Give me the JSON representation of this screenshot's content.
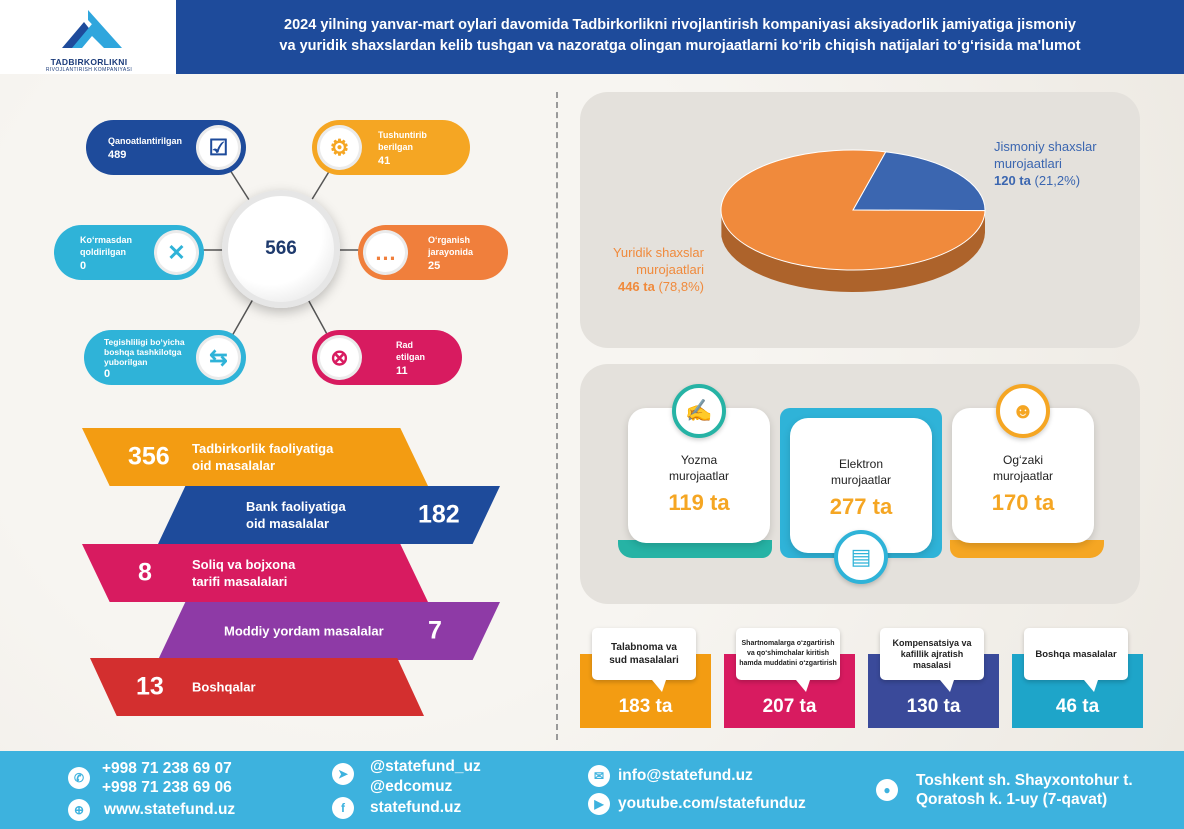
{
  "header": {
    "logo_title": "TADBIRKORLIKNI",
    "logo_subtitle": "RIVOJLANTIRISH KOMPANIYASI",
    "title_line1": "2024 yilning  yanvar-mart  oylari davomida Tadbirkorlikni rivojlantirish kompaniyasi aksiyadorlik jamiyatiga jismoniy",
    "title_line2": "va yuridik shaxslardan kelib tushgan va nazoratga olingan murojaatlarni ko‘rib chiqish natijalari to‘g‘risida ma'lumot"
  },
  "hub": {
    "total": "566",
    "items": [
      {
        "label": "Qanoatlantirilgan",
        "value": "489",
        "color": "#1e4b9b",
        "icon": "checkbox-icon"
      },
      {
        "label_l1": "Tushuntirib",
        "label_l2": "berilgan",
        "value": "41",
        "color": "#f5a623",
        "icon": "gear-icon"
      },
      {
        "label_l1": "Ko‘rmasdan",
        "label_l2": "qoldirilgan",
        "value": "0",
        "color": "#2fb3d8",
        "icon": "close-icon"
      },
      {
        "label_l1": "O‘rganish",
        "label_l2": "jarayonida",
        "value": "25",
        "color": "#f07f3c",
        "icon": "chat-icon"
      },
      {
        "label_l1": "Tegishliligi bo‘yicha",
        "label_l2": "boshqa tashkilotga",
        "label_l3": "yuborilgan",
        "value": "0",
        "color": "#2fb3d8",
        "icon": "transfer-icon"
      },
      {
        "label_l1": "Rad",
        "label_l2": "etilgan",
        "value": "11",
        "color": "#d81b60",
        "icon": "reject-icon"
      }
    ]
  },
  "ribbons": [
    {
      "value": "356",
      "label_l1": "Tadbirkorlik faoliyatiga",
      "label_l2": "oid masalalar",
      "color": "#f39c12"
    },
    {
      "value": "182",
      "label_l1": "Bank faoliyatiga",
      "label_l2": "oid masalalar",
      "color": "#1e4b9b"
    },
    {
      "value": "8",
      "label_l1": "Soliq va bojxona",
      "label_l2": "tarifi masalalari",
      "color": "#d81b60"
    },
    {
      "value": "7",
      "label_l1": "Moddiy yordam masalalar",
      "color": "#8e3aa6"
    },
    {
      "value": "13",
      "label_l1": "Boshqalar",
      "color": "#d32f2f"
    }
  ],
  "chart_data": {
    "type": "pie",
    "series": [
      {
        "name": "Jismoniy shaxslar murojaatlari",
        "value": 120,
        "percent": "21,2%",
        "color": "#3b66b0"
      },
      {
        "name": "Yuridik shaxslar murojaatlari",
        "value": 446,
        "percent": "78,8%",
        "color": "#f08a3c"
      }
    ],
    "labels": {
      "jismoniy_l1": "Jismoniy shaxslar",
      "jismoniy_l2": "murojaatlari",
      "jismoniy_v": "120 ta",
      "jismoniy_p": "(21,2%)",
      "yuridik_l1": "Yuridik shaxslar",
      "yuridik_l2": "murojaatlari",
      "yuridik_v": "446 ta",
      "yuridik_p": "(78,8%)"
    }
  },
  "appeal_types": [
    {
      "label_l1": "Yozma",
      "label_l2": "murojaatlar",
      "value": "119 ta",
      "color": "#26b3a5",
      "icon": "writing-icon"
    },
    {
      "label_l1": "Elektron",
      "label_l2": "murojaatlar",
      "value": "277 ta",
      "color": "#2fb3d8",
      "icon": "document-icon"
    },
    {
      "label_l1": "Og‘zaki",
      "label_l2": "murojaatlar",
      "value": "170 ta",
      "color": "#f5a623",
      "icon": "people-icon"
    }
  ],
  "issues": [
    {
      "label_l1": "Talabnoma va",
      "label_l2": "sud masalalari",
      "value": "183 ta",
      "color": "#f39c12"
    },
    {
      "label_l1": "Shartnomalarga o‘zgartirish",
      "label_l2": "va qo‘shimchalar kiritish",
      "label_l3": "hamda muddatini o‘zgartirish",
      "value": "207 ta",
      "color": "#d81b60"
    },
    {
      "label_l1": "Kompensatsiya va",
      "label_l2": "kafillik ajratish",
      "label_l3": "masalasi",
      "value": "130 ta",
      "color": "#3a4a9a"
    },
    {
      "label_l1": "Boshqa masalalar",
      "value": "46 ta",
      "color": "#1ea5c9"
    }
  ],
  "footer": {
    "phone1": "+998 71 238 69 07",
    "phone2": "+998 71 238 69 06",
    "website": "www.statefund.uz",
    "telegram1": "@statefund_uz",
    "telegram2": "@edcomuz",
    "facebook": "statefund.uz",
    "email": "info@statefund.uz",
    "youtube": "youtube.com/statefunduz",
    "address_l1": "Toshkent sh. Shayxontohur t.",
    "address_l2": "Qoratosh k. 1-uy (7-qavat)"
  }
}
